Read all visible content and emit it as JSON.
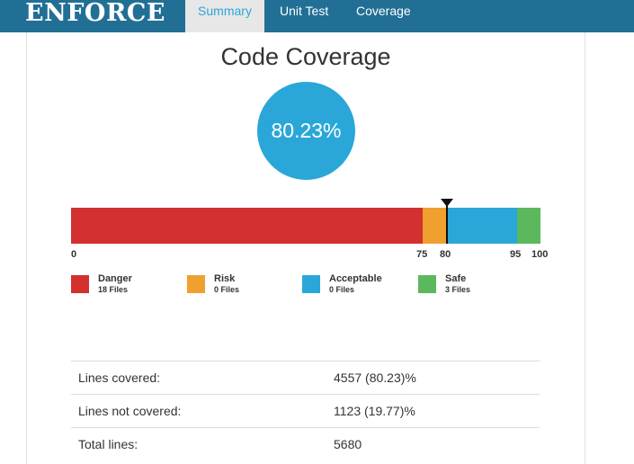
{
  "app": {
    "brand": "ENFORCE",
    "nav": [
      {
        "label": "Summary",
        "active": true
      },
      {
        "label": "Unit Test",
        "active": false
      },
      {
        "label": "Coverage",
        "active": false
      }
    ]
  },
  "coverage": {
    "title": "Code Coverage",
    "percent": "80.23%",
    "percent_value": 80.23,
    "scale_max": 100,
    "segments": [
      {
        "name": "Danger",
        "files": "18 Files",
        "from": 0,
        "to": 75,
        "color": "#d33030"
      },
      {
        "name": "Risk",
        "files": "0 Files",
        "from": 75,
        "to": 80,
        "color": "#f0a02e"
      },
      {
        "name": "Acceptable",
        "files": "0 Files",
        "from": 80,
        "to": 95,
        "color": "#2aa7d8"
      },
      {
        "name": "Safe",
        "files": "3 Files",
        "from": 95,
        "to": 100,
        "color": "#5cb85c"
      }
    ],
    "ticks": [
      "0",
      "75",
      "80",
      "95",
      "100"
    ]
  },
  "stats": [
    {
      "label": "Lines covered:",
      "value": "4557 (80.23)%"
    },
    {
      "label": "Lines not covered:",
      "value": "1123 (19.77)%"
    },
    {
      "label": "Total lines:",
      "value": "5680"
    }
  ]
}
